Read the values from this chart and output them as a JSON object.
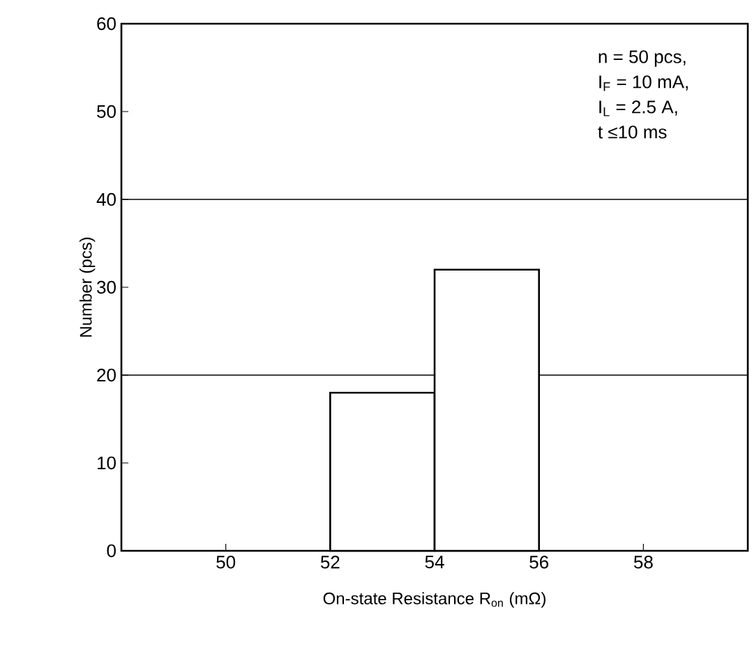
{
  "chart_data": {
    "type": "histogram",
    "xlabel": "On-state Resistance  R$_{on}$ (mΩ)",
    "ylabel": "Number  (pcs)",
    "bins": [
      52,
      54,
      56
    ],
    "values": [
      18,
      32
    ],
    "color": "#ffffff",
    "xlim": [
      48,
      60
    ],
    "xticks": [
      50,
      52,
      54,
      56,
      58
    ],
    "ylim": [
      0,
      60
    ],
    "yticks": [
      0,
      10,
      20,
      30,
      40,
      50,
      60
    ],
    "ref_lines": [
      {
        "axis": "y",
        "value": 20,
        "color": "#000000"
      },
      {
        "axis": "y",
        "value": 40,
        "color": "#000000"
      }
    ],
    "annotations": [
      "n = 50 pcs,",
      "I$_{F}$ = 10 mA,",
      "I$_{L}$ = 2.5 A,",
      "t ≤10 ms"
    ]
  }
}
